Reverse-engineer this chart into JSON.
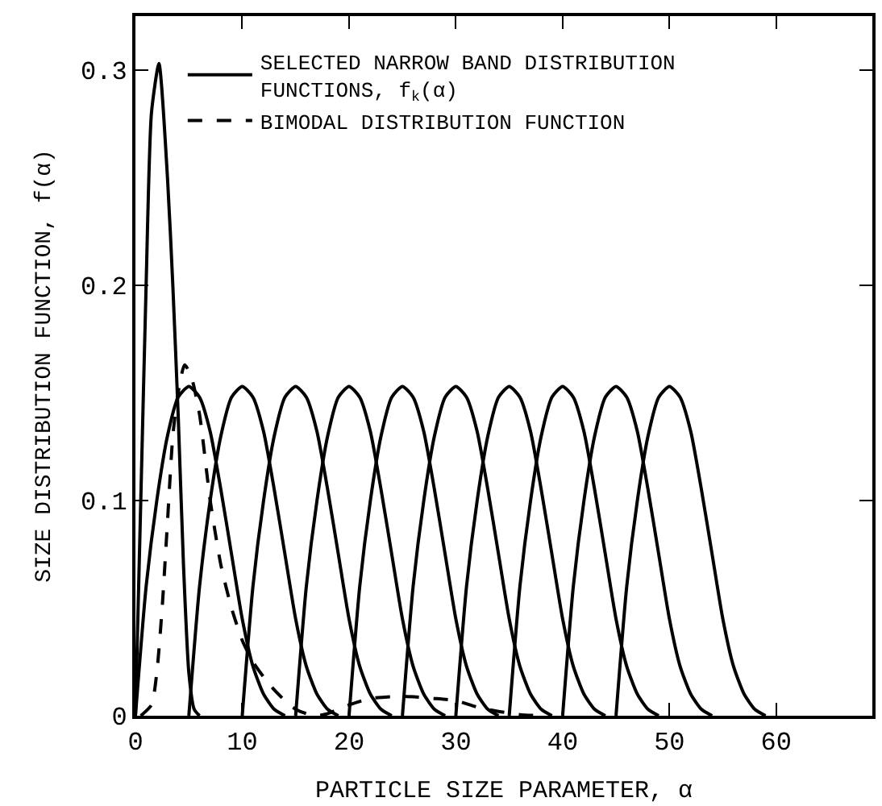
{
  "chart_data": {
    "type": "line",
    "xlabel": "PARTICLE SIZE PARAMETER, α",
    "ylabel": "SIZE DISTRIBUTION FUNCTION, f(α)",
    "xlim": [
      0,
      69
    ],
    "ylim": [
      0,
      0.325
    ],
    "xticks": [
      0,
      10,
      20,
      30,
      40,
      50,
      60
    ],
    "yticks": [
      0,
      0.1,
      0.2,
      0.3
    ],
    "legend": "top",
    "marker": "none",
    "series": [
      {
        "name": "SELECTED NARROW BAND DISTRIBUTION FUNCTIONS, f$_{k}$(α)",
        "color": "#000000",
        "line_style": "solid",
        "x": [
          0,
          0.5,
          1,
          1.5,
          2.2,
          3,
          3.5,
          4,
          4.5,
          5,
          5.5,
          6
        ],
        "values": [
          0,
          0.1,
          0.2,
          0.28,
          0.303,
          0.25,
          0.2,
          0.14,
          0.07,
          0.02,
          0.003,
          0
        ]
      },
      {
        "color": "#000000",
        "line_style": "solid",
        "x": [
          0,
          1,
          2,
          3,
          4,
          5,
          6,
          7,
          8,
          9,
          10,
          11,
          12,
          13,
          14
        ],
        "values": [
          0,
          0.06,
          0.1,
          0.13,
          0.148,
          0.153,
          0.148,
          0.132,
          0.105,
          0.075,
          0.045,
          0.023,
          0.01,
          0.003,
          0
        ]
      },
      {
        "color": "#000000",
        "line_style": "solid",
        "x": [
          5,
          6,
          7,
          8,
          9,
          10,
          11,
          12,
          13,
          14,
          15,
          16,
          17,
          18,
          19
        ],
        "values": [
          0,
          0.06,
          0.1,
          0.13,
          0.148,
          0.153,
          0.148,
          0.132,
          0.105,
          0.075,
          0.045,
          0.023,
          0.01,
          0.003,
          0
        ]
      },
      {
        "color": "#000000",
        "line_style": "solid",
        "x": [
          10,
          11,
          12,
          13,
          14,
          15,
          16,
          17,
          18,
          19,
          20,
          21,
          22,
          23,
          24
        ],
        "values": [
          0,
          0.06,
          0.1,
          0.13,
          0.148,
          0.153,
          0.148,
          0.132,
          0.105,
          0.075,
          0.045,
          0.023,
          0.01,
          0.003,
          0
        ]
      },
      {
        "color": "#000000",
        "line_style": "solid",
        "x": [
          15,
          16,
          17,
          18,
          19,
          20,
          21,
          22,
          23,
          24,
          25,
          26,
          27,
          28,
          29
        ],
        "values": [
          0,
          0.06,
          0.1,
          0.13,
          0.148,
          0.153,
          0.148,
          0.132,
          0.105,
          0.075,
          0.045,
          0.023,
          0.01,
          0.003,
          0
        ]
      },
      {
        "color": "#000000",
        "line_style": "solid",
        "x": [
          20,
          21,
          22,
          23,
          24,
          25,
          26,
          27,
          28,
          29,
          30,
          31,
          32,
          33,
          34
        ],
        "values": [
          0,
          0.06,
          0.1,
          0.13,
          0.148,
          0.153,
          0.148,
          0.132,
          0.105,
          0.075,
          0.045,
          0.023,
          0.01,
          0.003,
          0
        ]
      },
      {
        "color": "#000000",
        "line_style": "solid",
        "x": [
          25,
          26,
          27,
          28,
          29,
          30,
          31,
          32,
          33,
          34,
          35,
          36,
          37,
          38,
          39
        ],
        "values": [
          0,
          0.06,
          0.1,
          0.13,
          0.148,
          0.153,
          0.148,
          0.132,
          0.105,
          0.075,
          0.045,
          0.023,
          0.01,
          0.003,
          0
        ]
      },
      {
        "color": "#000000",
        "line_style": "solid",
        "x": [
          30,
          31,
          32,
          33,
          34,
          35,
          36,
          37,
          38,
          39,
          40,
          41,
          42,
          43,
          44
        ],
        "values": [
          0,
          0.06,
          0.1,
          0.13,
          0.148,
          0.153,
          0.148,
          0.132,
          0.105,
          0.075,
          0.045,
          0.023,
          0.01,
          0.003,
          0
        ]
      },
      {
        "color": "#000000",
        "line_style": "solid",
        "x": [
          35,
          36,
          37,
          38,
          39,
          40,
          41,
          42,
          43,
          44,
          45,
          46,
          47,
          48,
          49
        ],
        "values": [
          0,
          0.06,
          0.1,
          0.13,
          0.148,
          0.153,
          0.148,
          0.132,
          0.105,
          0.075,
          0.045,
          0.023,
          0.01,
          0.003,
          0
        ]
      },
      {
        "color": "#000000",
        "line_style": "solid",
        "x": [
          40,
          41,
          42,
          43,
          44,
          45,
          46,
          47,
          48,
          49,
          50,
          51,
          52,
          53,
          54
        ],
        "values": [
          0,
          0.06,
          0.1,
          0.13,
          0.148,
          0.153,
          0.148,
          0.132,
          0.105,
          0.075,
          0.045,
          0.023,
          0.01,
          0.003,
          0
        ]
      },
      {
        "color": "#000000",
        "line_style": "solid",
        "x": [
          45,
          46,
          47,
          48,
          49,
          50,
          51,
          52,
          53,
          54,
          55,
          56,
          57,
          58,
          59
        ],
        "values": [
          0,
          0.06,
          0.1,
          0.13,
          0.148,
          0.153,
          0.148,
          0.132,
          0.105,
          0.075,
          0.045,
          0.023,
          0.01,
          0.003,
          0
        ]
      },
      {
        "name": "BIMODAL DISTRIBUTION FUNCTION",
        "color": "#000000",
        "line_style": "dashed",
        "x": [
          0.5,
          1.5,
          2,
          2.5,
          3,
          3.5,
          4,
          4.6,
          5.2,
          6,
          7,
          8,
          9,
          10,
          11,
          12,
          13,
          14,
          15,
          16,
          17,
          18,
          19,
          20,
          22,
          25,
          28,
          30,
          32,
          34,
          36,
          38
        ],
        "values": [
          0,
          0.005,
          0.02,
          0.05,
          0.09,
          0.13,
          0.15,
          0.163,
          0.158,
          0.14,
          0.1,
          0.07,
          0.05,
          0.035,
          0.025,
          0.018,
          0.012,
          0.007,
          0.003,
          0.001,
          0,
          0.001,
          0.003,
          0.005,
          0.008,
          0.009,
          0.008,
          0.007,
          0.004,
          0.002,
          0.0005,
          0
        ]
      }
    ]
  }
}
